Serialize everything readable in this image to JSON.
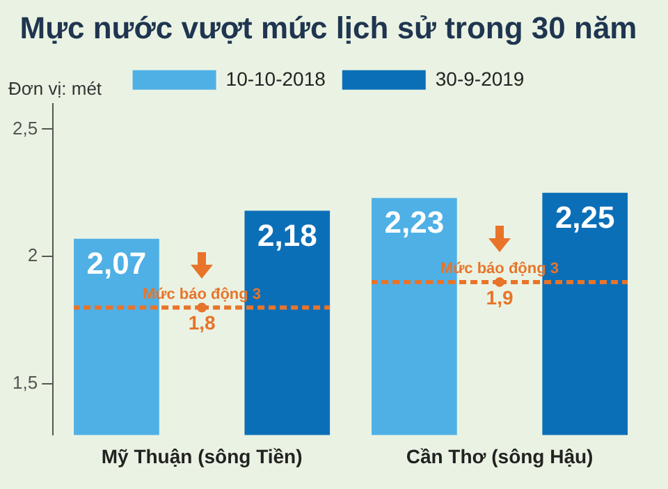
{
  "chart_data": {
    "type": "bar",
    "title": "Mực nước vượt mức lịch sử trong 30 năm",
    "ylabel": "Đơn vị: mét",
    "categories": [
      "Mỹ Thuận (sông Tiền)",
      "Cần Thơ (sông Hậu)"
    ],
    "series": [
      {
        "name": "10-10-2018",
        "color": "#4fb0e6",
        "values": [
          2.07,
          2.23
        ],
        "value_labels": [
          "2,07",
          "2,23"
        ]
      },
      {
        "name": "Mức báo động 3",
        "type": "line",
        "color": "#e8742a",
        "values": [
          1.8,
          null
        ],
        "value_labels": [
          "1,8",
          null
        ],
        "line_style": "dashed",
        "marker": "circle"
      },
      {
        "name": "Mức báo động 3",
        "type": "line",
        "color": "#e8742a",
        "values": [
          null,
          1.9
        ],
        "value_labels": [
          null,
          "1,9"
        ],
        "line_style": "dashed",
        "marker": "circle"
      },
      {
        "name": "30-9-2019",
        "color": "#0b6fb8",
        "values": [
          2.18,
          2.25
        ],
        "value_labels": [
          "2,18",
          "2,25"
        ]
      }
    ],
    "ylim": [
      1.3,
      2.6
    ],
    "yticks": [
      {
        "value": 1.5,
        "label": "1,5"
      },
      {
        "value": 2,
        "label": "2"
      },
      {
        "value": 2.5,
        "label": "2,5"
      }
    ],
    "grid": false,
    "legend": "top"
  }
}
